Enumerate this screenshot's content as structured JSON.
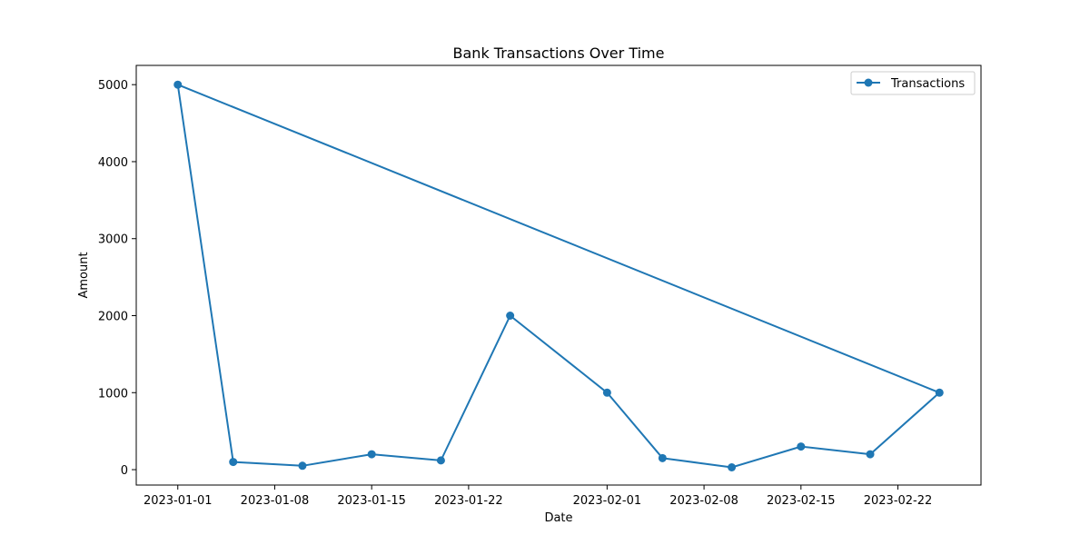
{
  "chart_data": {
    "type": "line",
    "title": "Bank Transactions Over Time",
    "xlabel": "Date",
    "ylabel": "Amount",
    "x_ticks": [
      "2023-01-01",
      "2023-01-08",
      "2023-01-15",
      "2023-01-22",
      "2023-02-01",
      "2023-02-08",
      "2023-02-15",
      "2023-02-22"
    ],
    "y_ticks": [
      "0",
      "1000",
      "2000",
      "3000",
      "4000",
      "5000"
    ],
    "ylim": [
      -200,
      5250
    ],
    "xlim": [
      "2022-12-29",
      "2023-02-28"
    ],
    "grid": false,
    "legend_position": "top-right",
    "series": [
      {
        "name": "Transactions",
        "color": "#1f77b4",
        "marker": "circle",
        "points": [
          {
            "x": "2023-01-01",
            "y": 5000
          },
          {
            "x": "2023-01-05",
            "y": 100
          },
          {
            "x": "2023-01-10",
            "y": 50
          },
          {
            "x": "2023-01-15",
            "y": 200
          },
          {
            "x": "2023-01-20",
            "y": 120
          },
          {
            "x": "2023-01-25",
            "y": 2000
          },
          {
            "x": "2023-02-01",
            "y": 1000
          },
          {
            "x": "2023-02-05",
            "y": 150
          },
          {
            "x": "2023-02-10",
            "y": 30
          },
          {
            "x": "2023-02-15",
            "y": 300
          },
          {
            "x": "2023-02-20",
            "y": 200
          },
          {
            "x": "2023-02-25",
            "y": 1000
          },
          {
            "x": "2023-01-01",
            "y": 5000
          }
        ]
      }
    ]
  }
}
